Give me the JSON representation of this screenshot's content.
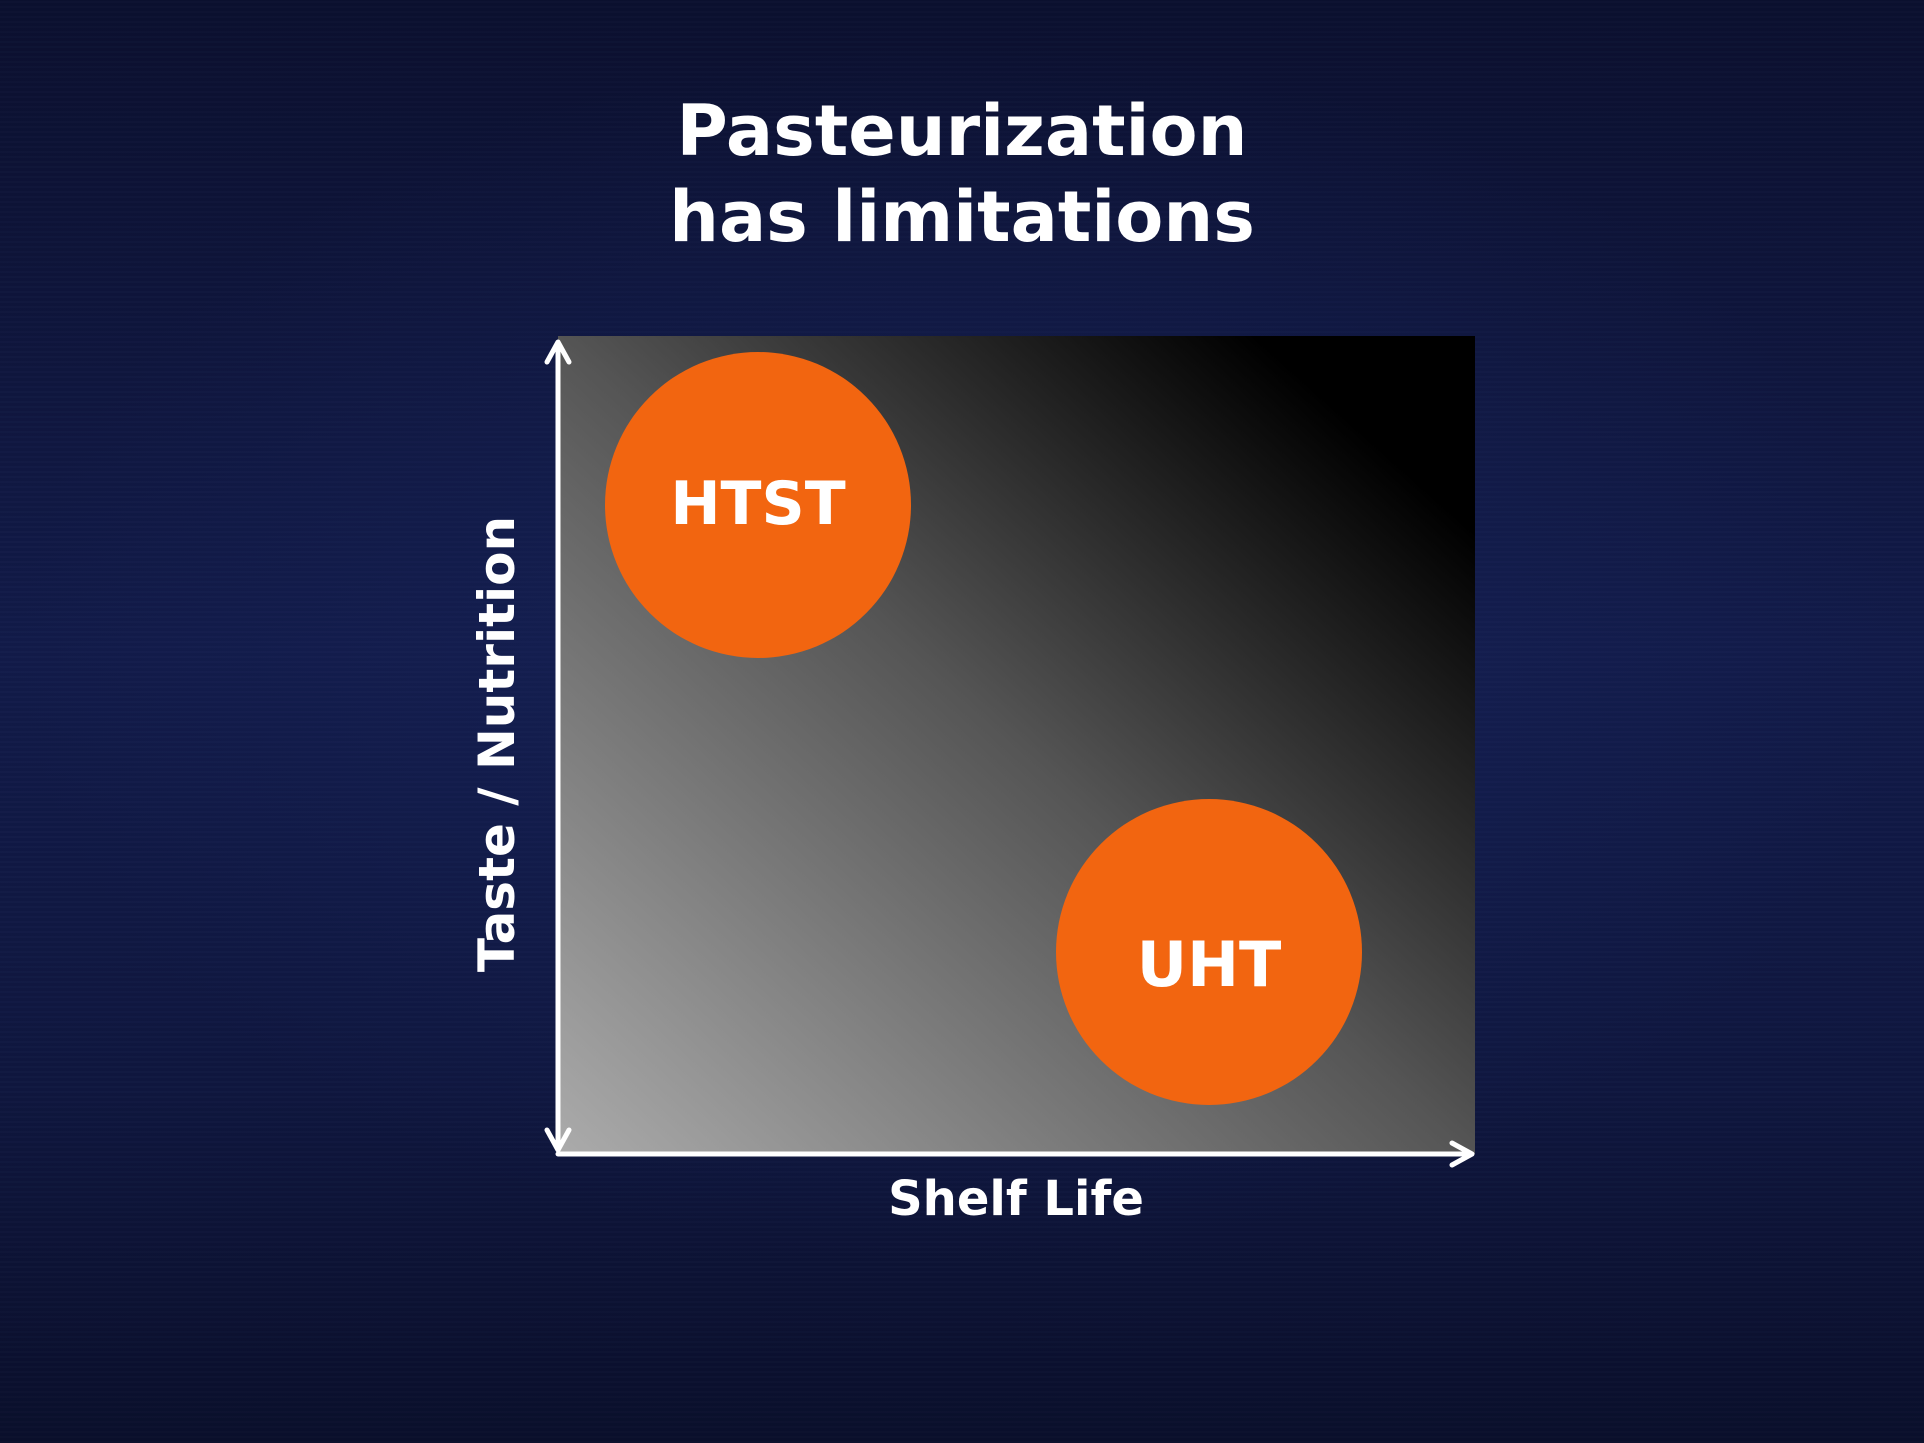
{
  "title": {
    "line1": "Pasteurization",
    "line2": "has limitations"
  },
  "axes": {
    "x_label": "Shelf Life",
    "y_label": "Taste / Nutrition"
  },
  "bubbles": [
    {
      "label": "HTST"
    },
    {
      "label": "UHT"
    }
  ],
  "colors": {
    "background": "#121b4a",
    "bubble": "#f26510",
    "axis": "#ffffff",
    "text": "#ffffff",
    "panel_light": "#ababab",
    "panel_dark": "#000000"
  }
}
